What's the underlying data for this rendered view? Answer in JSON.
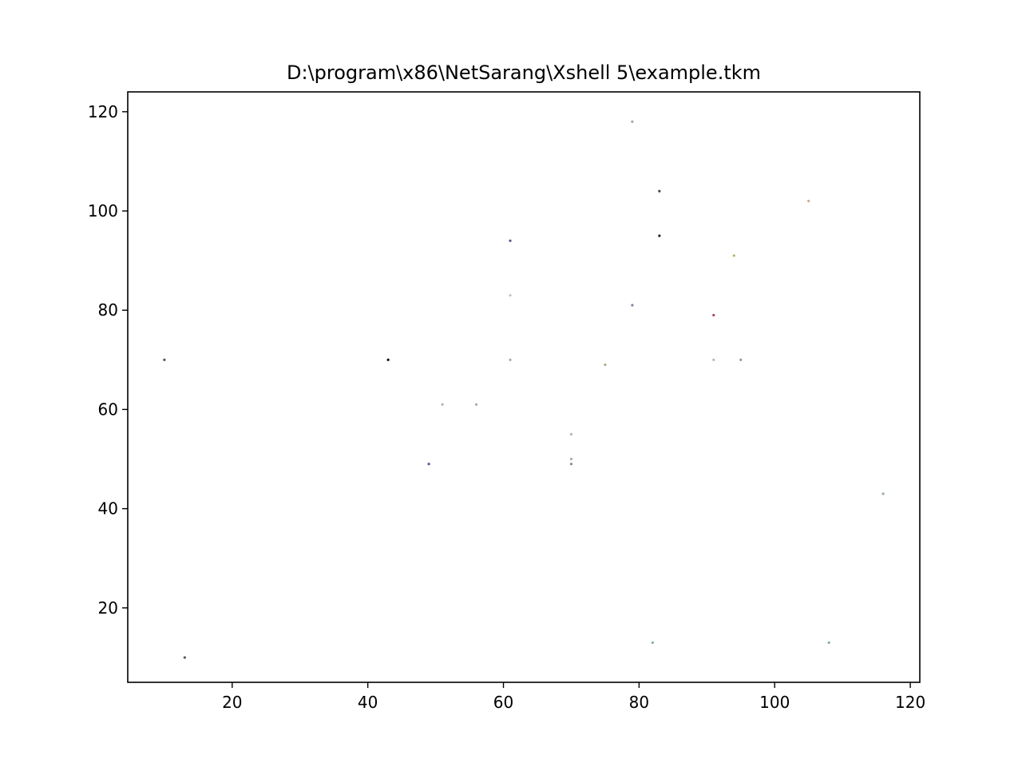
{
  "chart_data": {
    "type": "scatter",
    "title": "D:\\program\\x86\\NetSarang\\Xshell 5\\example.tkm",
    "xlabel": "",
    "ylabel": "",
    "xlim": [
      4.6,
      121.4
    ],
    "ylim": [
      5,
      124
    ],
    "xticks": [
      20,
      40,
      60,
      80,
      100,
      120
    ],
    "yticks": [
      20,
      40,
      60,
      80,
      100,
      120
    ],
    "grid": false,
    "legend": "none",
    "points": [
      {
        "x": 10,
        "y": 70,
        "color": "#555566"
      },
      {
        "x": 13,
        "y": 10,
        "color": "#555566"
      },
      {
        "x": 43,
        "y": 70,
        "color": "#111111"
      },
      {
        "x": 49,
        "y": 49,
        "color": "#5555aa"
      },
      {
        "x": 51,
        "y": 61,
        "color": "#aabbaa"
      },
      {
        "x": 56,
        "y": 61,
        "color": "#aaaaaa"
      },
      {
        "x": 61,
        "y": 94,
        "color": "#555588"
      },
      {
        "x": 61,
        "y": 83,
        "color": "#bbccbb"
      },
      {
        "x": 61,
        "y": 70,
        "color": "#aaaaaa"
      },
      {
        "x": 70,
        "y": 55,
        "color": "#aabbaa"
      },
      {
        "x": 70,
        "y": 50,
        "color": "#aaaaaa"
      },
      {
        "x": 70,
        "y": 49,
        "color": "#8888aa"
      },
      {
        "x": 75,
        "y": 69,
        "color": "#aaaa88"
      },
      {
        "x": 79,
        "y": 118,
        "color": "#99aaaa"
      },
      {
        "x": 79,
        "y": 81,
        "color": "#778899"
      },
      {
        "x": 82,
        "y": 13,
        "color": "#88aaaa"
      },
      {
        "x": 83,
        "y": 104,
        "color": "#444455"
      },
      {
        "x": 83,
        "y": 95,
        "color": "#222233"
      },
      {
        "x": 91,
        "y": 79,
        "color": "#aa4455"
      },
      {
        "x": 91,
        "y": 70,
        "color": "#bbbbaa"
      },
      {
        "x": 94,
        "y": 91,
        "color": "#aabb66"
      },
      {
        "x": 95,
        "y": 70,
        "color": "#999999"
      },
      {
        "x": 105,
        "y": 102,
        "color": "#ccaa99"
      },
      {
        "x": 108,
        "y": 13,
        "color": "#88aaaa"
      },
      {
        "x": 116,
        "y": 43,
        "color": "#99aaaa"
      }
    ]
  }
}
